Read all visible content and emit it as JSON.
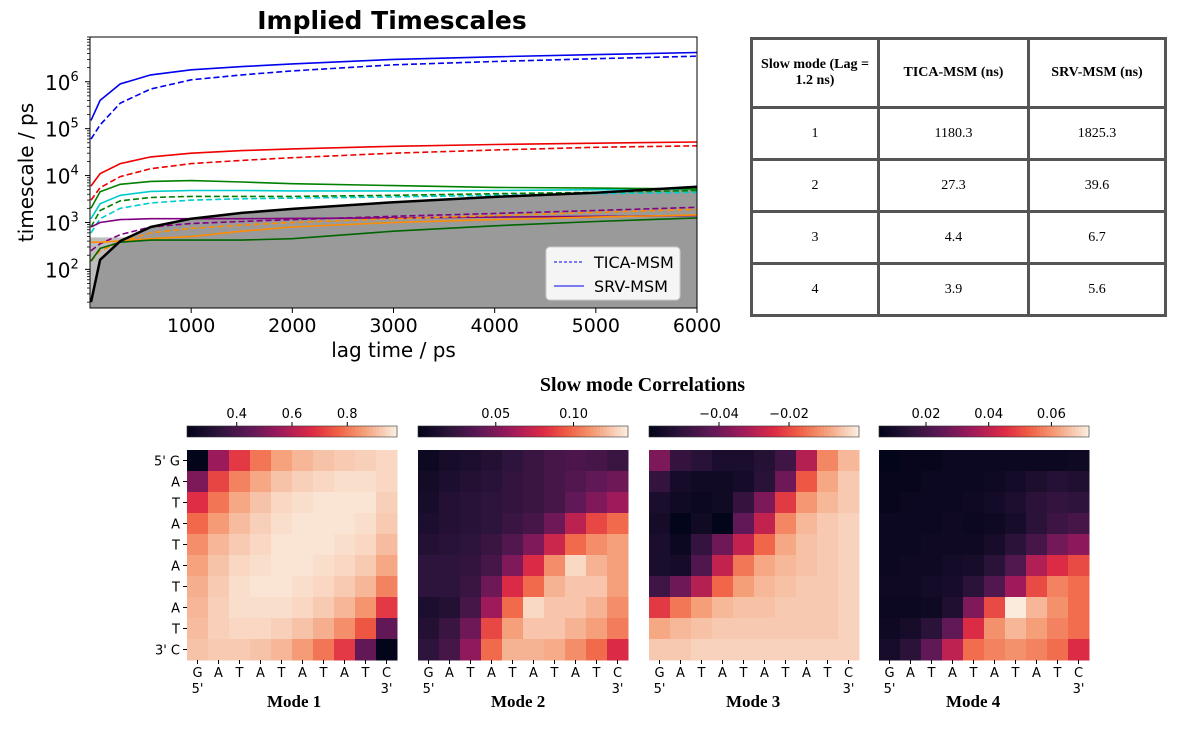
{
  "chart_data": [
    {
      "type": "line",
      "title": "Implied Timescales",
      "xlabel": "lag time / ps",
      "ylabel": "timescale / ps",
      "xlim": [
        0,
        6000
      ],
      "ylim": [
        15,
        9000000
      ],
      "yscale": "log",
      "xticks": [
        "1000",
        "2000",
        "3000",
        "4000",
        "5000",
        "6000"
      ],
      "yticks": [
        "10",
        "10",
        "10",
        "10",
        "10"
      ],
      "ytick_exponents": [
        "2",
        "3",
        "4",
        "5",
        "6"
      ],
      "legend": {
        "position": "lower-right",
        "entries": [
          "TICA-MSM",
          "SRV-MSM"
        ]
      },
      "x": [
        10,
        100,
        300,
        600,
        1000,
        1500,
        2000,
        3000,
        4000,
        5000,
        6000
      ],
      "series": [
        {
          "color": "#0000ee",
          "dash": false,
          "values": [
            150000,
            400000,
            900000,
            1400000,
            1800000,
            2100000,
            2400000,
            3000000,
            3400000,
            3800000,
            4200000
          ]
        },
        {
          "color": "#0000ee",
          "dash": true,
          "values": [
            60000,
            120000,
            350000,
            700000,
            1100000,
            1400000,
            1700000,
            2300000,
            2700000,
            3100000,
            3500000
          ]
        },
        {
          "color": "#ee0000",
          "dash": false,
          "values": [
            6000,
            11000,
            18000,
            25000,
            30000,
            34000,
            37000,
            42000,
            46000,
            49000,
            52000
          ]
        },
        {
          "color": "#ee0000",
          "dash": true,
          "values": [
            3000,
            5500,
            9500,
            14000,
            18000,
            21000,
            24000,
            30000,
            35000,
            40000,
            43000
          ]
        },
        {
          "color": "#00cccc",
          "dash": false,
          "values": [
            1200,
            2500,
            3800,
            4600,
            4800,
            4800,
            4700,
            4700,
            4800,
            5000,
            5200
          ]
        },
        {
          "color": "#00cccc",
          "dash": true,
          "values": [
            600,
            1200,
            2000,
            2600,
            3000,
            3200,
            3300,
            3500,
            3800,
            4100,
            4400
          ]
        },
        {
          "color": "#008000",
          "dash": false,
          "values": [
            2000,
            4500,
            6500,
            7500,
            7800,
            7300,
            6700,
            6100,
            5600,
            5400,
            5200
          ]
        },
        {
          "color": "#008000",
          "dash": true,
          "values": [
            800,
            1800,
            2900,
            3400,
            3600,
            3600,
            3600,
            3800,
            4100,
            4400,
            4800
          ]
        },
        {
          "color": "#800080",
          "dash": false,
          "values": [
            800,
            1000,
            1150,
            1200,
            1200,
            1200,
            1220,
            1250,
            1300,
            1350,
            1400
          ]
        },
        {
          "color": "#800080",
          "dash": true,
          "values": [
            250,
            350,
            550,
            800,
            950,
            1050,
            1150,
            1350,
            1550,
            1800,
            2100
          ]
        },
        {
          "color": "#ff8c00",
          "dash": false,
          "values": [
            380,
            380,
            400,
            450,
            500,
            650,
            800,
            1000,
            1150,
            1300,
            1450
          ]
        },
        {
          "color": "#ff8c00",
          "dash": true,
          "values": [
            150,
            250,
            380,
            600,
            750,
            880,
            1000,
            1200,
            1400,
            1650,
            1900
          ]
        },
        {
          "color": "#006400",
          "dash": false,
          "values": [
            150,
            280,
            380,
            420,
            420,
            420,
            450,
            650,
            850,
            1050,
            1250
          ]
        },
        {
          "color": "#000000",
          "dash": false,
          "values": [
            20,
            160,
            400,
            800,
            1200,
            1600,
            1950,
            2700,
            3500,
            4300,
            5800
          ]
        }
      ],
      "shaded_region": {
        "x": [
          10,
          100,
          300,
          600,
          1000,
          1500,
          2000,
          3000,
          4000,
          5000,
          6000
        ],
        "upper": [
          20,
          160,
          400,
          800,
          1200,
          1600,
          1950,
          2700,
          3500,
          4300,
          5800
        ],
        "baseline": 480
      }
    },
    {
      "type": "table",
      "columns": [
        "Slow mode (Lag = 1.2 ns)",
        "TICA-MSM (ns)",
        "SRV-MSM (ns)"
      ],
      "rows": [
        [
          "1",
          "1180.3",
          "1825.3"
        ],
        [
          "2",
          "27.3",
          "39.6"
        ],
        [
          "3",
          "4.4",
          "6.7"
        ],
        [
          "4",
          "3.9",
          "5.6"
        ]
      ]
    },
    {
      "type": "heatmap",
      "title": "Slow mode Correlations",
      "rows": [
        "5' G",
        "A",
        "T",
        "A",
        "T",
        "A",
        "T",
        "A",
        "T",
        "3' C"
      ],
      "cols": [
        "G",
        "A",
        "T",
        "A",
        "T",
        "A",
        "T",
        "A",
        "T",
        "C"
      ],
      "col_end_labels": [
        "5'",
        "3'"
      ],
      "panels": [
        {
          "label": "Mode 1",
          "colorbar_ticks": [
            "0.4",
            "0.6",
            "0.8"
          ],
          "colorbar_tick_values": [
            0.4,
            0.6,
            0.8
          ],
          "vmin": 0.22,
          "vmax": 0.98,
          "values": [
            [
              0.2,
              0.55,
              0.7,
              0.8,
              0.87,
              0.9,
              0.92,
              0.93,
              0.94,
              0.95
            ],
            [
              0.5,
              0.72,
              0.82,
              0.88,
              0.92,
              0.94,
              0.95,
              0.96,
              0.96,
              0.95
            ],
            [
              0.68,
              0.8,
              0.88,
              0.92,
              0.95,
              0.96,
              0.97,
              0.97,
              0.97,
              0.94
            ],
            [
              0.78,
              0.86,
              0.91,
              0.94,
              0.96,
              0.97,
              0.97,
              0.97,
              0.96,
              0.93
            ],
            [
              0.84,
              0.9,
              0.93,
              0.95,
              0.97,
              0.97,
              0.97,
              0.96,
              0.95,
              0.91
            ],
            [
              0.87,
              0.92,
              0.95,
              0.96,
              0.97,
              0.97,
              0.96,
              0.95,
              0.93,
              0.88
            ],
            [
              0.89,
              0.93,
              0.96,
              0.97,
              0.97,
              0.96,
              0.95,
              0.93,
              0.9,
              0.82
            ],
            [
              0.9,
              0.94,
              0.96,
              0.96,
              0.96,
              0.95,
              0.93,
              0.9,
              0.85,
              0.7
            ],
            [
              0.91,
              0.94,
              0.95,
              0.95,
              0.94,
              0.92,
              0.89,
              0.84,
              0.75,
              0.45
            ],
            [
              0.92,
              0.93,
              0.93,
              0.92,
              0.9,
              0.86,
              0.8,
              0.7,
              0.45,
              0.15
            ]
          ]
        },
        {
          "label": "Mode 2",
          "colorbar_ticks": [
            "0.05",
            "0.10"
          ],
          "colorbar_tick_values": [
            0.05,
            0.1
          ],
          "vmin": 0.0,
          "vmax": 0.135,
          "values": [
            [
              0.005,
              0.01,
              0.012,
              0.015,
              0.02,
              0.025,
              0.03,
              0.032,
              0.03,
              0.025
            ],
            [
              0.008,
              0.012,
              0.015,
              0.018,
              0.022,
              0.025,
              0.03,
              0.035,
              0.04,
              0.045
            ],
            [
              0.01,
              0.015,
              0.018,
              0.02,
              0.022,
              0.025,
              0.03,
              0.04,
              0.05,
              0.06
            ],
            [
              0.012,
              0.015,
              0.018,
              0.02,
              0.025,
              0.03,
              0.045,
              0.07,
              0.09,
              0.1
            ],
            [
              0.015,
              0.018,
              0.02,
              0.025,
              0.035,
              0.05,
              0.075,
              0.1,
              0.11,
              0.115
            ],
            [
              0.02,
              0.02,
              0.022,
              0.03,
              0.05,
              0.08,
              0.11,
              0.13,
              0.12,
              0.115
            ],
            [
              0.02,
              0.02,
              0.025,
              0.045,
              0.08,
              0.1,
              0.12,
              0.125,
              0.125,
              0.115
            ],
            [
              0.012,
              0.015,
              0.03,
              0.06,
              0.1,
              0.13,
              0.125,
              0.125,
              0.12,
              0.11
            ],
            [
              0.015,
              0.025,
              0.045,
              0.09,
              0.115,
              0.125,
              0.125,
              0.12,
              0.115,
              0.105
            ],
            [
              0.02,
              0.03,
              0.055,
              0.1,
              0.12,
              0.12,
              0.118,
              0.11,
              0.1,
              0.08
            ]
          ]
        },
        {
          "label": "Mode 3",
          "colorbar_ticks": [
            "−0.04",
            "−0.02"
          ],
          "colorbar_tick_values": [
            -0.04,
            -0.02
          ],
          "vmin": -0.06,
          "vmax": 0.0,
          "values": [
            [
              -0.038,
              -0.05,
              -0.052,
              -0.055,
              -0.055,
              -0.053,
              -0.048,
              -0.03,
              -0.012,
              -0.006
            ],
            [
              -0.05,
              -0.056,
              -0.057,
              -0.057,
              -0.056,
              -0.052,
              -0.04,
              -0.018,
              -0.008,
              -0.004
            ],
            [
              -0.055,
              -0.057,
              -0.058,
              -0.057,
              -0.05,
              -0.038,
              -0.022,
              -0.01,
              -0.006,
              -0.004
            ],
            [
              -0.056,
              -0.06,
              -0.057,
              -0.06,
              -0.042,
              -0.028,
              -0.012,
              -0.006,
              -0.004,
              -0.003
            ],
            [
              -0.055,
              -0.058,
              -0.05,
              -0.04,
              -0.028,
              -0.016,
              -0.008,
              -0.005,
              -0.004,
              -0.003
            ],
            [
              -0.055,
              -0.056,
              -0.045,
              -0.028,
              -0.014,
              -0.008,
              -0.006,
              -0.005,
              -0.004,
              -0.003
            ],
            [
              -0.048,
              -0.04,
              -0.03,
              -0.016,
              -0.009,
              -0.006,
              -0.005,
              -0.004,
              -0.004,
              -0.003
            ],
            [
              -0.022,
              -0.014,
              -0.009,
              -0.006,
              -0.005,
              -0.005,
              -0.004,
              -0.004,
              -0.004,
              -0.003
            ],
            [
              -0.008,
              -0.006,
              -0.005,
              -0.004,
              -0.004,
              -0.004,
              -0.004,
              -0.004,
              -0.004,
              -0.003
            ],
            [
              -0.004,
              -0.004,
              -0.003,
              -0.003,
              -0.003,
              -0.003,
              -0.003,
              -0.003,
              -0.003,
              -0.003
            ]
          ]
        },
        {
          "label": "Mode 4",
          "colorbar_ticks": [
            "0.02",
            "0.04",
            "0.06"
          ],
          "colorbar_tick_values": [
            0.02,
            0.04,
            0.06
          ],
          "vmin": 0.005,
          "vmax": 0.072,
          "values": [
            [
              0.005,
              0.006,
              0.006,
              0.007,
              0.007,
              0.007,
              0.007,
              0.007,
              0.007,
              0.008
            ],
            [
              0.006,
              0.006,
              0.007,
              0.007,
              0.007,
              0.008,
              0.009,
              0.011,
              0.013,
              0.012
            ],
            [
              0.006,
              0.007,
              0.007,
              0.007,
              0.008,
              0.009,
              0.011,
              0.014,
              0.016,
              0.015
            ],
            [
              0.007,
              0.007,
              0.007,
              0.008,
              0.007,
              0.008,
              0.01,
              0.014,
              0.018,
              0.02
            ],
            [
              0.007,
              0.007,
              0.008,
              0.008,
              0.008,
              0.01,
              0.014,
              0.02,
              0.028,
              0.032
            ],
            [
              0.007,
              0.008,
              0.008,
              0.009,
              0.01,
              0.014,
              0.022,
              0.038,
              0.045,
              0.05
            ],
            [
              0.008,
              0.008,
              0.009,
              0.01,
              0.014,
              0.022,
              0.035,
              0.05,
              0.058,
              0.055
            ],
            [
              0.007,
              0.007,
              0.008,
              0.012,
              0.03,
              0.05,
              0.072,
              0.065,
              0.06,
              0.055
            ],
            [
              0.008,
              0.01,
              0.014,
              0.025,
              0.045,
              0.06,
              0.065,
              0.062,
              0.058,
              0.055
            ],
            [
              0.01,
              0.014,
              0.025,
              0.04,
              0.055,
              0.058,
              0.06,
              0.058,
              0.055,
              0.045
            ]
          ]
        }
      ]
    }
  ]
}
